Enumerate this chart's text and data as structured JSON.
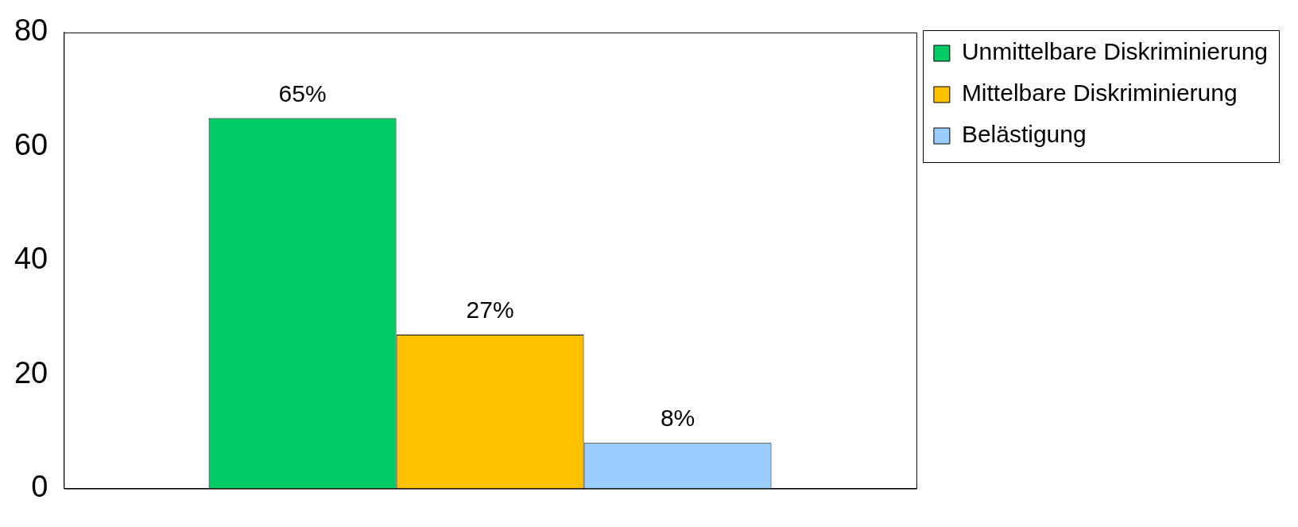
{
  "chart_data": {
    "type": "bar",
    "categories": [
      null
    ],
    "ylim": [
      0,
      80
    ],
    "yticks": [
      0,
      20,
      40,
      60,
      80
    ],
    "grid": false,
    "legend": "top right",
    "series": [
      {
        "name": "Unmittelbare Diskriminierung",
        "color": "#00cc66",
        "values": [
          65
        ],
        "value_labels": [
          "65%"
        ]
      },
      {
        "name": "Mittelbare Diskriminierung",
        "color": "#ffc000",
        "values": [
          27
        ],
        "value_labels": [
          "27%"
        ]
      },
      {
        "name": "Belästigung",
        "color": "#99ccff",
        "values": [
          8
        ],
        "value_labels": [
          "8%"
        ]
      }
    ]
  }
}
